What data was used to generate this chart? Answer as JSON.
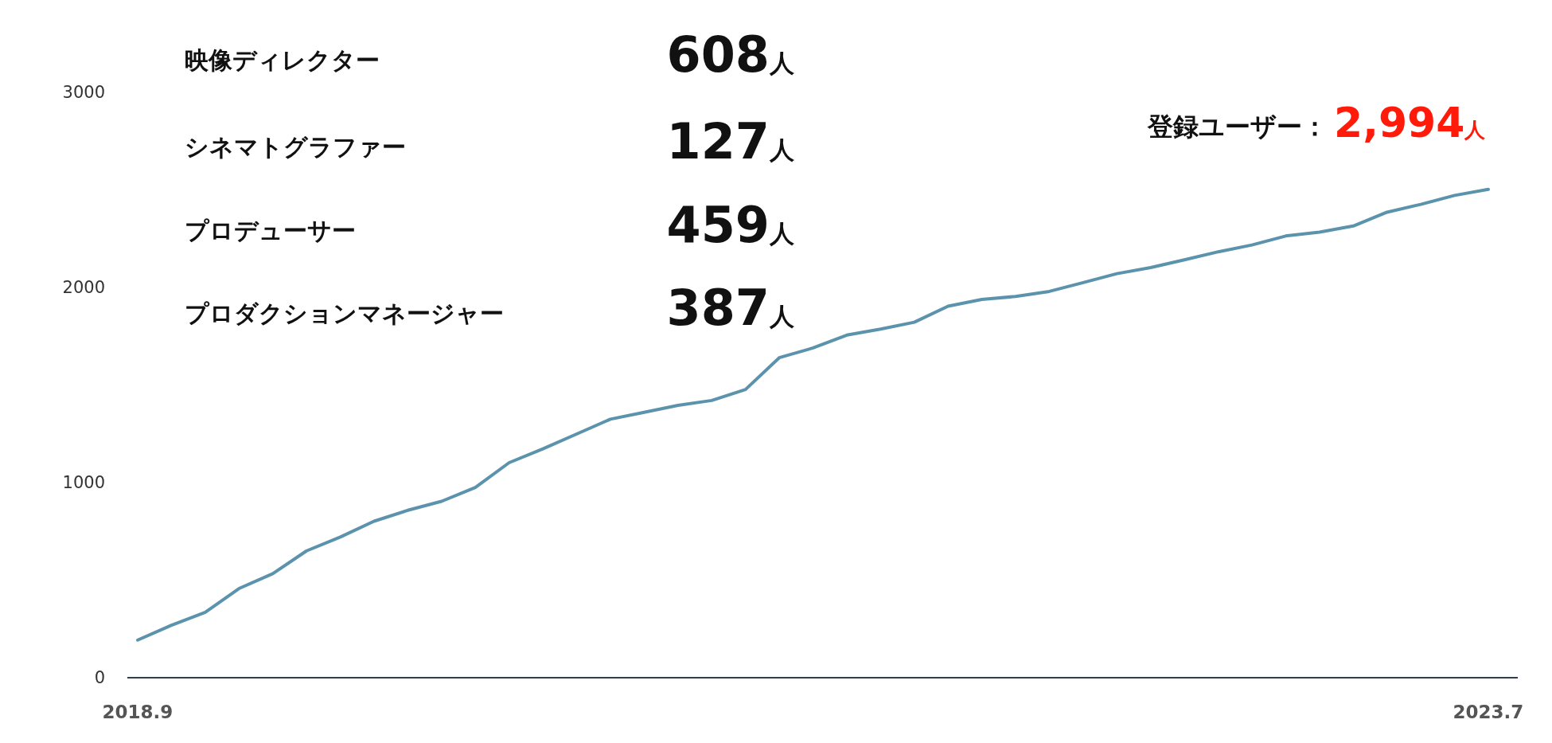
{
  "chart_data": {
    "type": "line",
    "categories": [
      "2018.9",
      null,
      null,
      null,
      null,
      null,
      null,
      null,
      null,
      null,
      null,
      null,
      null,
      null,
      null,
      null,
      null,
      null,
      null,
      null,
      null,
      null,
      null,
      null,
      null,
      null,
      null,
      null,
      null,
      null,
      null,
      null,
      null,
      null,
      null,
      null,
      null,
      null,
      null,
      null,
      "2023.7"
    ],
    "series": [
      {
        "color": "#5b93ad",
        "values": [
          193,
          269,
          335,
          457,
          533,
          650,
          721,
          802,
          858,
          904,
          975,
          1102,
          1173,
          1249,
          1325,
          1360,
          1396,
          1421,
          1477,
          1640,
          1690,
          1756,
          1787,
          1822,
          1904,
          1939,
          1954,
          1980,
          2025,
          2071,
          2102,
          2142,
          2183,
          2218,
          2264,
          2284,
          2315,
          2386,
          2426,
          2472,
          2503
        ]
      }
    ],
    "ylim": [
      0,
      3000
    ],
    "yticks": [
      0,
      1000,
      2000,
      3000
    ],
    "grid": false,
    "marker": "none",
    "line_style": "solid",
    "annotations": [
      "映像ディレクター",
      "608人",
      "シネマトグラファー",
      "127人",
      "プロデューサー",
      "459人",
      "プロダクションマネージャー",
      "387人",
      "登録ユーザー：",
      "2,994人"
    ]
  }
}
